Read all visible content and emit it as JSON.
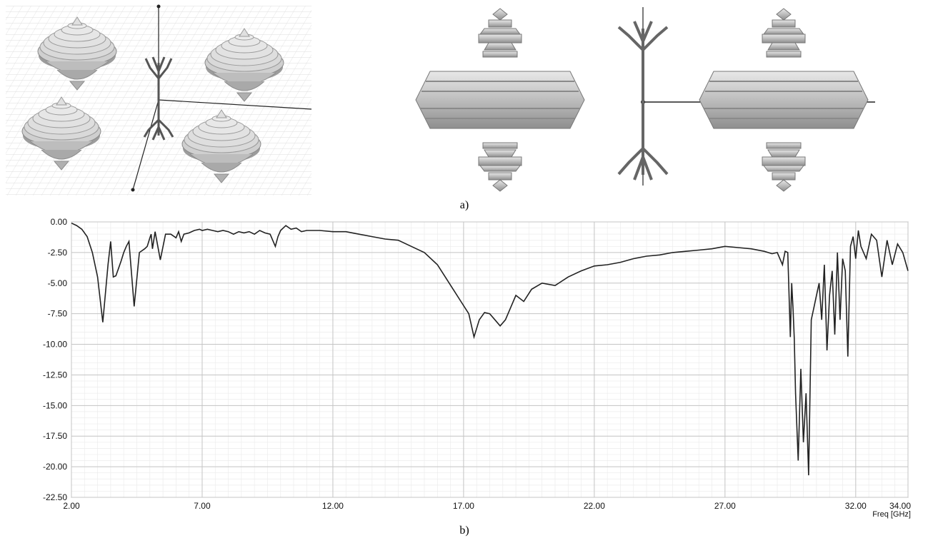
{
  "figure": {
    "caption_a": "a)",
    "caption_b": "b)"
  },
  "chart_data": {
    "type": "line",
    "xlabel": "Freq [GHz]",
    "ylabel": "",
    "xlim": [
      2,
      34
    ],
    "ylim": [
      -22.5,
      0
    ],
    "x_ticks": [
      2,
      7,
      12,
      17,
      22,
      27,
      32,
      34
    ],
    "x_tick_labels": [
      "2.00",
      "7.00",
      "12.00",
      "17.00",
      "22.00",
      "27.00",
      "32.00",
      "34.00"
    ],
    "y_ticks": [
      0,
      -2.5,
      -5,
      -7.5,
      -10,
      -12.5,
      -15,
      -17.5,
      -20,
      -22.5
    ],
    "y_tick_labels": [
      "0.00",
      "-2.50",
      "-5.00",
      "-7.50",
      "-10.00",
      "-12.50",
      "-15.00",
      "-17.50",
      "-20.00",
      "-22.50"
    ],
    "grid": true,
    "line_color": "#222222",
    "series": [
      {
        "x": [
          2.0,
          2.2,
          2.4,
          2.6,
          2.8,
          3.0,
          3.2,
          3.4,
          3.5,
          3.6,
          3.7,
          3.8,
          3.9,
          4.0,
          4.1,
          4.2,
          4.4,
          4.6,
          4.8,
          4.9,
          5.0,
          5.05,
          5.1,
          5.2,
          5.4,
          5.6,
          5.8,
          6.0,
          6.1,
          6.2,
          6.3,
          6.5,
          6.7,
          6.9,
          7.0,
          7.2,
          7.4,
          7.6,
          7.8,
          8.0,
          8.2,
          8.4,
          8.6,
          8.8,
          9.0,
          9.2,
          9.4,
          9.6,
          9.8,
          9.9,
          10.0,
          10.2,
          10.4,
          10.6,
          10.8,
          11.0,
          11.5,
          12.0,
          12.5,
          13.0,
          13.5,
          14.0,
          14.5,
          15.0,
          15.5,
          16.0,
          16.3,
          16.6,
          16.9,
          17.2,
          17.4,
          17.6,
          17.8,
          18.0,
          18.2,
          18.4,
          18.6,
          18.8,
          19.0,
          19.3,
          19.6,
          20.0,
          20.5,
          21.0,
          21.5,
          22.0,
          22.5,
          23.0,
          23.5,
          24.0,
          24.5,
          25.0,
          25.5,
          26.0,
          26.5,
          27.0,
          27.5,
          28.0,
          28.5,
          28.8,
          29.0,
          29.2,
          29.3,
          29.4,
          29.5,
          29.55,
          29.6,
          29.65,
          29.7,
          29.8,
          29.9,
          30.0,
          30.1,
          30.2,
          30.3,
          30.4,
          30.5,
          30.6,
          30.7,
          30.8,
          30.9,
          31.0,
          31.1,
          31.2,
          31.3,
          31.4,
          31.5,
          31.6,
          31.7,
          31.8,
          31.9,
          32.0,
          32.1,
          32.2,
          32.4,
          32.6,
          32.8,
          33.0,
          33.2,
          33.4,
          33.6,
          33.8,
          34.0
        ],
        "y": [
          -0.1,
          -0.3,
          -0.6,
          -1.2,
          -2.5,
          -4.5,
          -8.2,
          -3.5,
          -1.6,
          -4.5,
          -4.4,
          -3.8,
          -3.2,
          -2.5,
          -2.0,
          -1.6,
          -6.9,
          -2.5,
          -2.2,
          -2.0,
          -1.3,
          -1.0,
          -2.2,
          -0.8,
          -3.1,
          -1.0,
          -1.0,
          -1.3,
          -0.8,
          -1.6,
          -1.0,
          -0.9,
          -0.7,
          -0.6,
          -0.7,
          -0.6,
          -0.7,
          -0.8,
          -0.7,
          -0.8,
          -1.0,
          -0.8,
          -0.9,
          -0.8,
          -1.0,
          -0.7,
          -0.9,
          -1.0,
          -2.0,
          -1.2,
          -0.7,
          -0.3,
          -0.6,
          -0.5,
          -0.8,
          -0.7,
          -0.7,
          -0.8,
          -0.8,
          -1.0,
          -1.2,
          -1.4,
          -1.5,
          -2.0,
          -2.5,
          -3.5,
          -4.5,
          -5.5,
          -6.5,
          -7.5,
          -9.4,
          -8.0,
          -7.4,
          -7.5,
          -8.0,
          -8.5,
          -8.0,
          -7.0,
          -6.0,
          -6.5,
          -5.5,
          -5.0,
          -5.2,
          -4.5,
          -4.0,
          -3.6,
          -3.5,
          -3.3,
          -3.0,
          -2.8,
          -2.7,
          -2.5,
          -2.4,
          -2.3,
          -2.2,
          -2.0,
          -2.1,
          -2.2,
          -2.4,
          -2.6,
          -2.5,
          -3.5,
          -2.4,
          -2.5,
          -9.4,
          -5.0,
          -7.0,
          -9.5,
          -14.0,
          -19.5,
          -12.0,
          -18.0,
          -14.0,
          -20.7,
          -8.0,
          -7.0,
          -6.0,
          -5.0,
          -8.0,
          -3.5,
          -10.5,
          -6.0,
          -4.0,
          -9.2,
          -2.5,
          -8.0,
          -3.0,
          -4.0,
          -11.0,
          -2.0,
          -1.2,
          -3.0,
          -0.7,
          -2.0,
          -3.0,
          -1.0,
          -1.5,
          -4.5,
          -1.5,
          -3.5,
          -1.8,
          -2.5,
          -4.0
        ]
      }
    ]
  }
}
